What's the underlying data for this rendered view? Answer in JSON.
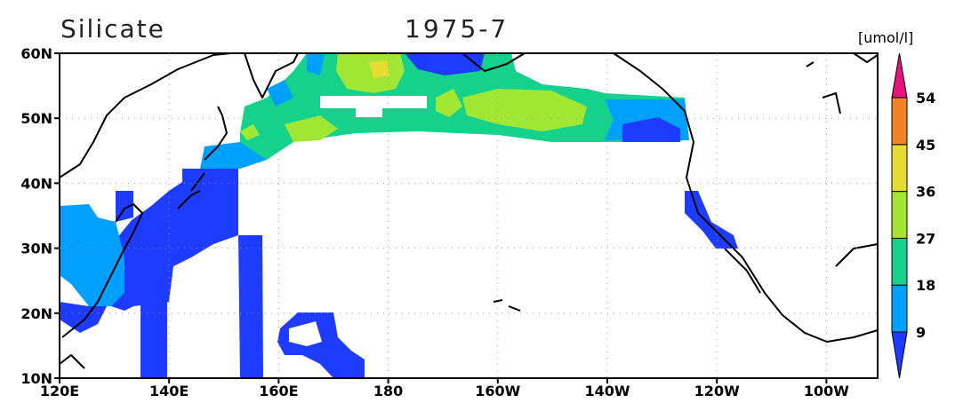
{
  "title": "Silicate",
  "subtitle": "1975-7",
  "units": "[umol/l]",
  "lat_labels": [
    "60N",
    "50N",
    "40N",
    "30N",
    "20N",
    "10N"
  ],
  "lon_labels": [
    "120E",
    "140E",
    "160E",
    "180",
    "160W",
    "140W",
    "120W",
    "100W"
  ],
  "colorbar": {
    "levels": [
      9,
      18,
      27,
      36,
      45,
      54
    ],
    "colors": [
      "#1e3cff",
      "#00a0ff",
      "#14d28c",
      "#a0e632",
      "#e6dc32",
      "#f08228",
      "#e6147c"
    ]
  }
}
